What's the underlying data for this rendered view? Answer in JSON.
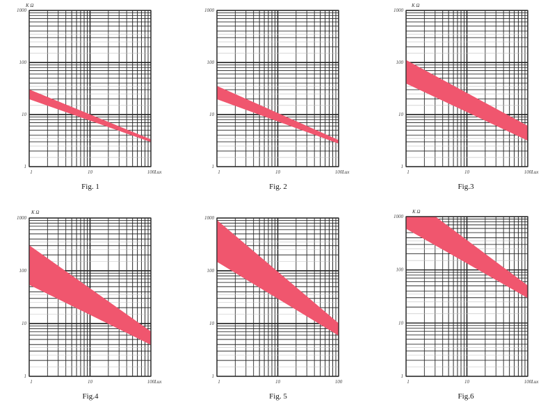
{
  "colors": {
    "band": "#f0566e",
    "grid": "#2a2a2a",
    "background": "#ffffff"
  },
  "chart_data": [
    {
      "type": "area",
      "caption": "Fig. 1",
      "xlabel": "Lux",
      "ylabel": "K Ω",
      "xscale": "log",
      "yscale": "log",
      "xlim": [
        1,
        100
      ],
      "ylim": [
        1,
        1000
      ],
      "xticks": [
        "1",
        "10",
        "100"
      ],
      "yticks": [
        "1",
        "10",
        "100",
        "1000"
      ],
      "grid": true,
      "series": [
        {
          "name": "",
          "x": [
            1,
            100
          ],
          "y_upper": [
            30,
            3.3
          ],
          "y_lower": [
            20,
            3.0
          ]
        }
      ]
    },
    {
      "type": "area",
      "caption": "Fig. 2",
      "xlabel": "Lux",
      "ylabel": "",
      "xscale": "log",
      "yscale": "log",
      "xlim": [
        1,
        100
      ],
      "ylim": [
        1,
        1000
      ],
      "xticks": [
        "1",
        "10",
        "100"
      ],
      "yticks": [
        "1",
        "10",
        "100",
        "1000"
      ],
      "grid": true,
      "series": [
        {
          "name": "",
          "x": [
            1,
            100
          ],
          "y_upper": [
            35,
            3.2
          ],
          "y_lower": [
            20,
            2.8
          ]
        }
      ]
    },
    {
      "type": "area",
      "caption": "Fig.3",
      "xlabel": "Lux",
      "ylabel": "K Ω",
      "xscale": "log",
      "yscale": "log",
      "xlim": [
        1,
        100
      ],
      "ylim": [
        1,
        1000
      ],
      "xticks": [
        "1",
        "10",
        "100"
      ],
      "yticks": [
        "1",
        "10",
        "100",
        "1000"
      ],
      "grid": true,
      "series": [
        {
          "name": "",
          "x": [
            1,
            100
          ],
          "y_upper": [
            110,
            6
          ],
          "y_lower": [
            40,
            3.2
          ]
        }
      ]
    },
    {
      "type": "area",
      "caption": "Fig.4",
      "xlabel": "Lux",
      "ylabel": "K Ω",
      "xscale": "log",
      "yscale": "log",
      "xlim": [
        1,
        100
      ],
      "ylim": [
        1,
        1000
      ],
      "xticks": [
        "1",
        "10",
        "100"
      ],
      "yticks": [
        "1",
        "10",
        "100",
        "1000"
      ],
      "grid": true,
      "series": [
        {
          "name": "",
          "x": [
            1,
            100
          ],
          "y_upper": [
            300,
            7
          ],
          "y_lower": [
            55,
            4
          ]
        }
      ]
    },
    {
      "type": "area",
      "caption": "Fig. 5",
      "xlabel": "",
      "ylabel": "",
      "xscale": "log",
      "yscale": "log",
      "xlim": [
        1,
        100
      ],
      "ylim": [
        1,
        1000
      ],
      "xticks": [
        "1",
        "10",
        "100"
      ],
      "yticks": [
        "1",
        "10",
        "100",
        "1000"
      ],
      "grid": true,
      "series": [
        {
          "name": "",
          "x": [
            1,
            100
          ],
          "y_upper": [
            900,
            10
          ],
          "y_lower": [
            150,
            6
          ]
        }
      ]
    },
    {
      "type": "area",
      "caption": "Fig.6",
      "xlabel": "Lux",
      "ylabel": "K Ω",
      "xscale": "log",
      "yscale": "log",
      "xlim": [
        1,
        100
      ],
      "ylim": [
        1,
        1000
      ],
      "xticks": [
        "1",
        "10",
        "100"
      ],
      "yticks": [
        "1",
        "10",
        "100",
        "1000"
      ],
      "grid": true,
      "series": [
        {
          "name": "",
          "x": [
            1,
            100
          ],
          "x_top_start": 3,
          "y_upper": [
            1000,
            50
          ],
          "y_lower": [
            600,
            30
          ]
        }
      ]
    }
  ]
}
